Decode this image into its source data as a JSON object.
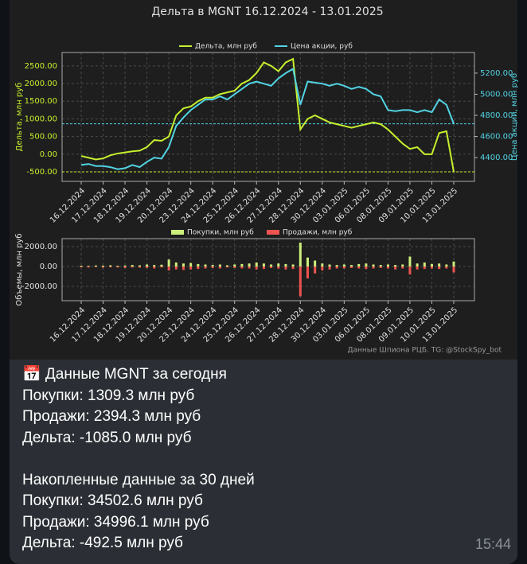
{
  "chart_data": [
    {
      "type": "line",
      "title": "Дельта в MGNT 16.12.2024 - 13.01.2025",
      "ylabel": "Дельта, млн руб",
      "y2label": "Цена акции, млн руб",
      "categories": [
        "16.12.2024",
        null,
        null,
        "17.12.2024",
        null,
        null,
        "18.12.2024",
        null,
        null,
        "19.12.2024",
        null,
        null,
        "20.12.2024",
        null,
        null,
        "23.12.2024",
        null,
        null,
        "24.12.2024",
        null,
        null,
        "25.12.2024",
        null,
        null,
        "26.12.2024",
        null,
        null,
        "27.12.2024",
        null,
        null,
        "28.12.2024",
        null,
        null,
        "30.12.2024",
        null,
        null,
        "03.01.2025",
        null,
        null,
        "06.01.2025",
        null,
        null,
        "08.01.2025",
        null,
        null,
        "09.01.2025",
        null,
        null,
        "10.01.2025",
        null,
        null,
        "13.01.2025"
      ],
      "ylim": [
        -770,
        2880
      ],
      "yticks": [
        {
          "value": -500,
          "label": "-500.00"
        },
        {
          "value": 0,
          "label": "0.00"
        },
        {
          "value": 500,
          "label": "500.00"
        },
        {
          "value": 1000,
          "label": "1000.00"
        },
        {
          "value": 1500,
          "label": "1500.00"
        },
        {
          "value": 2000,
          "label": "2000.00"
        },
        {
          "value": 2500,
          "label": "2500.00"
        }
      ],
      "y2lim": [
        4175,
        5395
      ],
      "y2ticks": [
        {
          "value": 4400,
          "label": "4400.00"
        },
        {
          "value": 4600,
          "label": "4600.00"
        },
        {
          "value": 4800,
          "label": "4800.00"
        },
        {
          "value": 5000,
          "label": "5000.00"
        },
        {
          "value": 5200,
          "label": "5200.00"
        }
      ],
      "grid": true,
      "legend": "top",
      "series": [
        {
          "name": "Дельта, млн руб",
          "color": "#c6ef2e",
          "values": [
            -50,
            -100,
            -150,
            -120,
            -30,
            20,
            50,
            80,
            100,
            200,
            400,
            380,
            500,
            1100,
            1300,
            1350,
            1500,
            1600,
            1600,
            1700,
            1750,
            1800,
            2000,
            2100,
            2300,
            2600,
            2500,
            2350,
            2600,
            2700,
            700,
            1000,
            1100,
            1000,
            900,
            850,
            800,
            750,
            800,
            850,
            900,
            850,
            700,
            500,
            300,
            150,
            200,
            0,
            0,
            600,
            650,
            -500
          ]
        },
        {
          "name": "Цена акции, руб",
          "color": "#52d3e3",
          "axis": "y2",
          "values": [
            4330,
            4340,
            4320,
            4320,
            4310,
            4290,
            4300,
            4330,
            4310,
            4360,
            4400,
            4390,
            4500,
            4700,
            4780,
            4850,
            4900,
            4950,
            4950,
            4980,
            4950,
            5000,
            5050,
            5100,
            5120,
            5100,
            5080,
            5150,
            5200,
            5240,
            4900,
            5120,
            5110,
            5100,
            5080,
            5100,
            5080,
            5050,
            5070,
            5050,
            5000,
            4980,
            4850,
            4840,
            4850,
            4850,
            4830,
            4850,
            4830,
            4950,
            4900,
            4720
          ]
        }
      ],
      "hlines": [
        {
          "value": -500,
          "color": "#c6ef2e"
        },
        {
          "value": 4720,
          "axis": "y2",
          "color": "#52d3e3"
        }
      ]
    },
    {
      "type": "bar",
      "ylabel": "Объемы, млн руб",
      "categories": [
        "16.12.2024",
        null,
        null,
        "17.12.2024",
        null,
        null,
        "18.12.2024",
        null,
        null,
        "19.12.2024",
        null,
        null,
        "20.12.2024",
        null,
        null,
        "23.12.2024",
        null,
        null,
        "24.12.2024",
        null,
        null,
        "25.12.2024",
        null,
        null,
        "26.12.2024",
        null,
        null,
        "27.12.2024",
        null,
        null,
        "28.12.2024",
        null,
        null,
        "30.12.2024",
        null,
        null,
        "03.01.2025",
        null,
        null,
        "06.01.2025",
        null,
        null,
        "08.01.2025",
        null,
        null,
        "09.01.2025",
        null,
        null,
        "10.01.2025",
        null,
        null,
        "13.01.2025"
      ],
      "ylim": [
        -3440,
        2800
      ],
      "yticks": [
        {
          "value": -2000,
          "label": "-2000.00"
        },
        {
          "value": 0,
          "label": "0.00"
        },
        {
          "value": 2000,
          "label": "2000.00"
        }
      ],
      "grid": true,
      "legend": "top",
      "series": [
        {
          "name": "Покупки, млн руб",
          "color": "#cdf07c",
          "values": [
            80,
            60,
            100,
            90,
            120,
            70,
            100,
            150,
            120,
            200,
            150,
            180,
            700,
            400,
            300,
            350,
            250,
            200,
            150,
            200,
            120,
            200,
            250,
            300,
            400,
            300,
            200,
            300,
            250,
            200,
            2400,
            900,
            600,
            300,
            200,
            150,
            200,
            150,
            250,
            300,
            200,
            150,
            200,
            150,
            200,
            1000,
            300,
            400,
            250,
            300,
            200,
            500
          ]
        },
        {
          "name": "Продажи, млн руб",
          "color": "#ef5350",
          "values": [
            -80,
            -100,
            -60,
            -120,
            -90,
            -100,
            -150,
            -100,
            -120,
            -150,
            -200,
            -100,
            -400,
            -300,
            -350,
            -300,
            -250,
            -200,
            -150,
            -200,
            -100,
            -150,
            -200,
            -200,
            -300,
            -250,
            -150,
            -200,
            -300,
            -250,
            -3000,
            -1200,
            -700,
            -400,
            -300,
            -200,
            -200,
            -150,
            -200,
            -250,
            -200,
            -150,
            -200,
            -300,
            -200,
            -800,
            -300,
            -250,
            -200,
            -250,
            -200,
            -600
          ]
        }
      ],
      "note": "Данные Шпиона РЦБ. TG: @StockSpy_bot"
    }
  ],
  "message": {
    "today": [
      "📅 Данные MGNT за сегодня",
      "Покупки: 1309.3 млн руб",
      "Продажи: 2394.3 млн руб",
      "Дельта: -1085.0 млн руб"
    ],
    "cumulative": [
      "Накопленные данные за 30 дней",
      "Покупки: 34502.6 млн руб",
      "Продажи: 34996.1 млн руб",
      "Дельта: -492.5 млн руб"
    ],
    "time": "15:44"
  }
}
